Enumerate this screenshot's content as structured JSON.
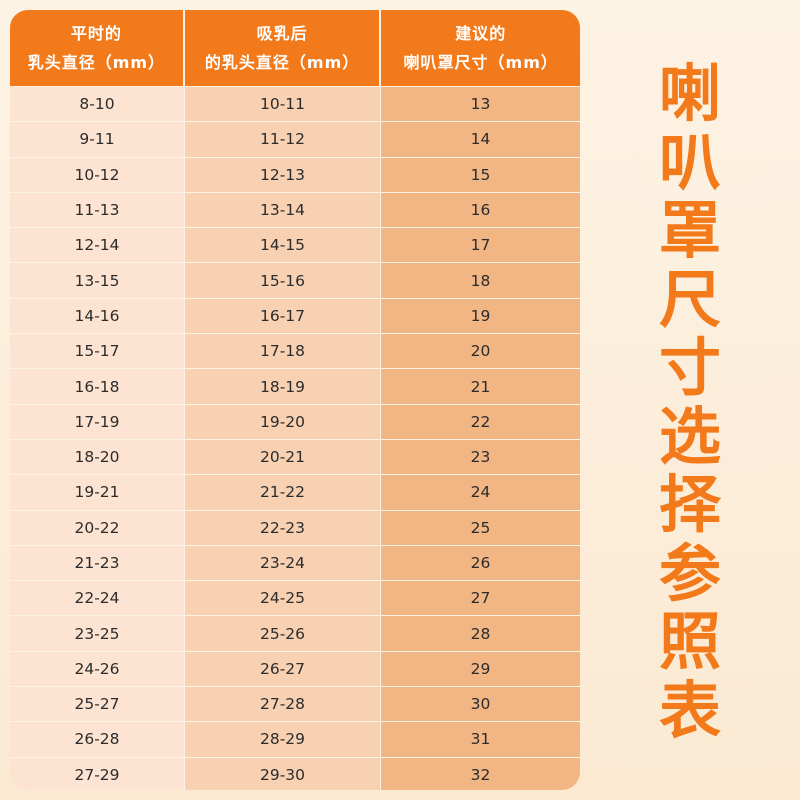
{
  "header": {
    "col1": "平时的\n乳头直径（mm）",
    "col2": "吸乳后\n的乳头直径（mm）",
    "col3": "建议的\n喇叭罩尺寸（mm）"
  },
  "rows": [
    [
      "8-10",
      "10-11",
      "13"
    ],
    [
      "9-11",
      "11-12",
      "14"
    ],
    [
      "10-12",
      "12-13",
      "15"
    ],
    [
      "11-13",
      "13-14",
      "16"
    ],
    [
      "12-14",
      "14-15",
      "17"
    ],
    [
      "13-15",
      "15-16",
      "18"
    ],
    [
      "14-16",
      "16-17",
      "19"
    ],
    [
      "15-17",
      "17-18",
      "20"
    ],
    [
      "16-18",
      "18-19",
      "21"
    ],
    [
      "17-19",
      "19-20",
      "22"
    ],
    [
      "18-20",
      "20-21",
      "23"
    ],
    [
      "19-21",
      "21-22",
      "24"
    ],
    [
      "20-22",
      "22-23",
      "25"
    ],
    [
      "21-23",
      "23-24",
      "26"
    ],
    [
      "22-24",
      "24-25",
      "27"
    ],
    [
      "23-25",
      "25-26",
      "28"
    ],
    [
      "24-26",
      "26-27",
      "29"
    ],
    [
      "25-27",
      "27-28",
      "30"
    ],
    [
      "26-28",
      "28-29",
      "31"
    ],
    [
      "27-29",
      "29-30",
      "32"
    ]
  ],
  "side_title": "喇叭罩尺寸选择参照表",
  "colors": {
    "accent": "#f27a1a",
    "col1_bg": "#fce3d2",
    "col2_bg": "#f8d1b2",
    "col3_bg": "#f2b684"
  }
}
